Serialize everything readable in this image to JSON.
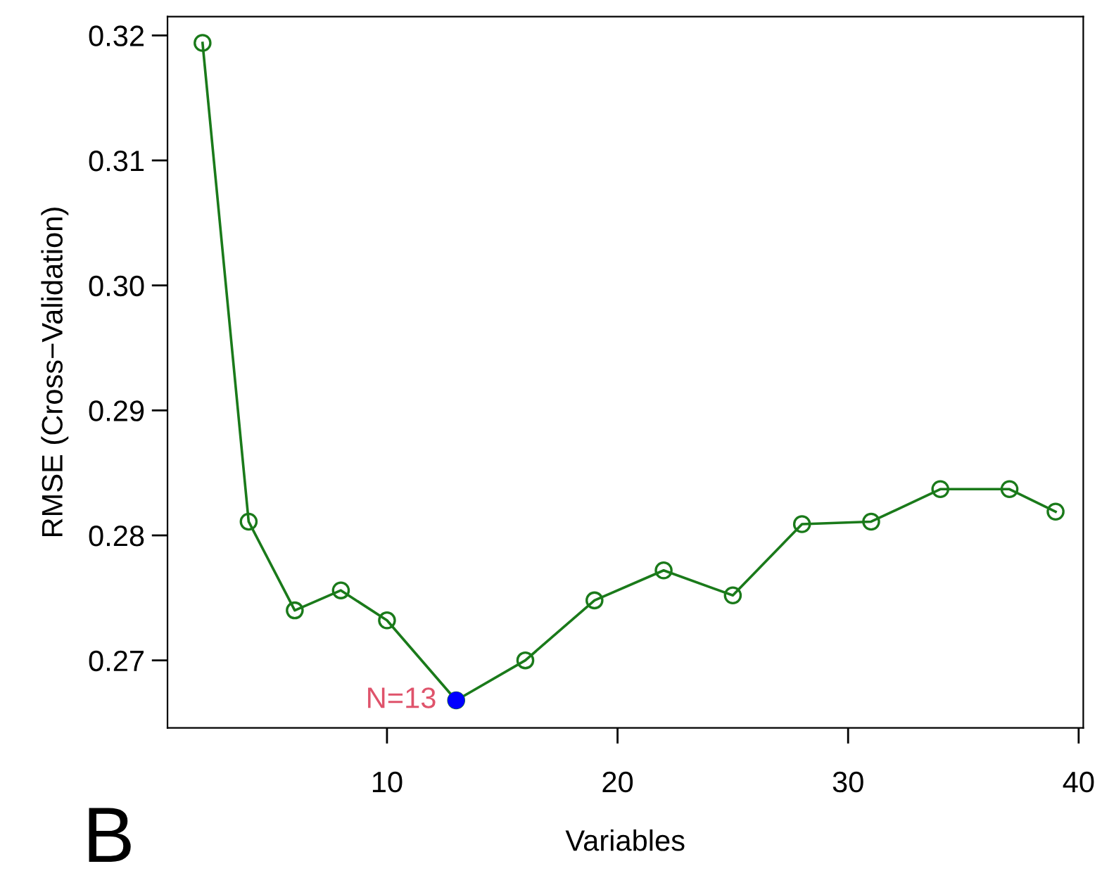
{
  "chart_data": {
    "type": "line",
    "xlabel": "Variables",
    "ylabel": "RMSE (Cross−Validation)",
    "series": [
      {
        "color": "#1a7a1a",
        "marker": "circle",
        "x": [
          2,
          4,
          6,
          8,
          10,
          13,
          16,
          19,
          22,
          25,
          28,
          31,
          34,
          37,
          39
        ],
        "values": [
          0.3194,
          0.2811,
          0.274,
          0.2756,
          0.2732,
          0.2668,
          0.27,
          0.2748,
          0.2772,
          0.2752,
          0.2809,
          0.2811,
          0.2837,
          0.2837,
          0.2819
        ]
      },
      {
        "type": "scatter",
        "color": "#0000ff",
        "marker": "circle",
        "x": [
          13
        ],
        "values": [
          0.2668
        ]
      }
    ],
    "annotations": [
      {
        "text": "N=13",
        "x": 13,
        "y": 0.2668
      },
      "B"
    ],
    "xlim": [
      0.48,
      40.2
    ],
    "ylim": [
      0.2646,
      0.3215
    ],
    "xticks": [
      10,
      20,
      30,
      40
    ],
    "yticks": [
      0.27,
      0.28,
      0.29,
      {
        "value": 0.3,
        "label": "0.30"
      },
      0.31,
      0.32
    ],
    "grid": false,
    "legend": false
  }
}
